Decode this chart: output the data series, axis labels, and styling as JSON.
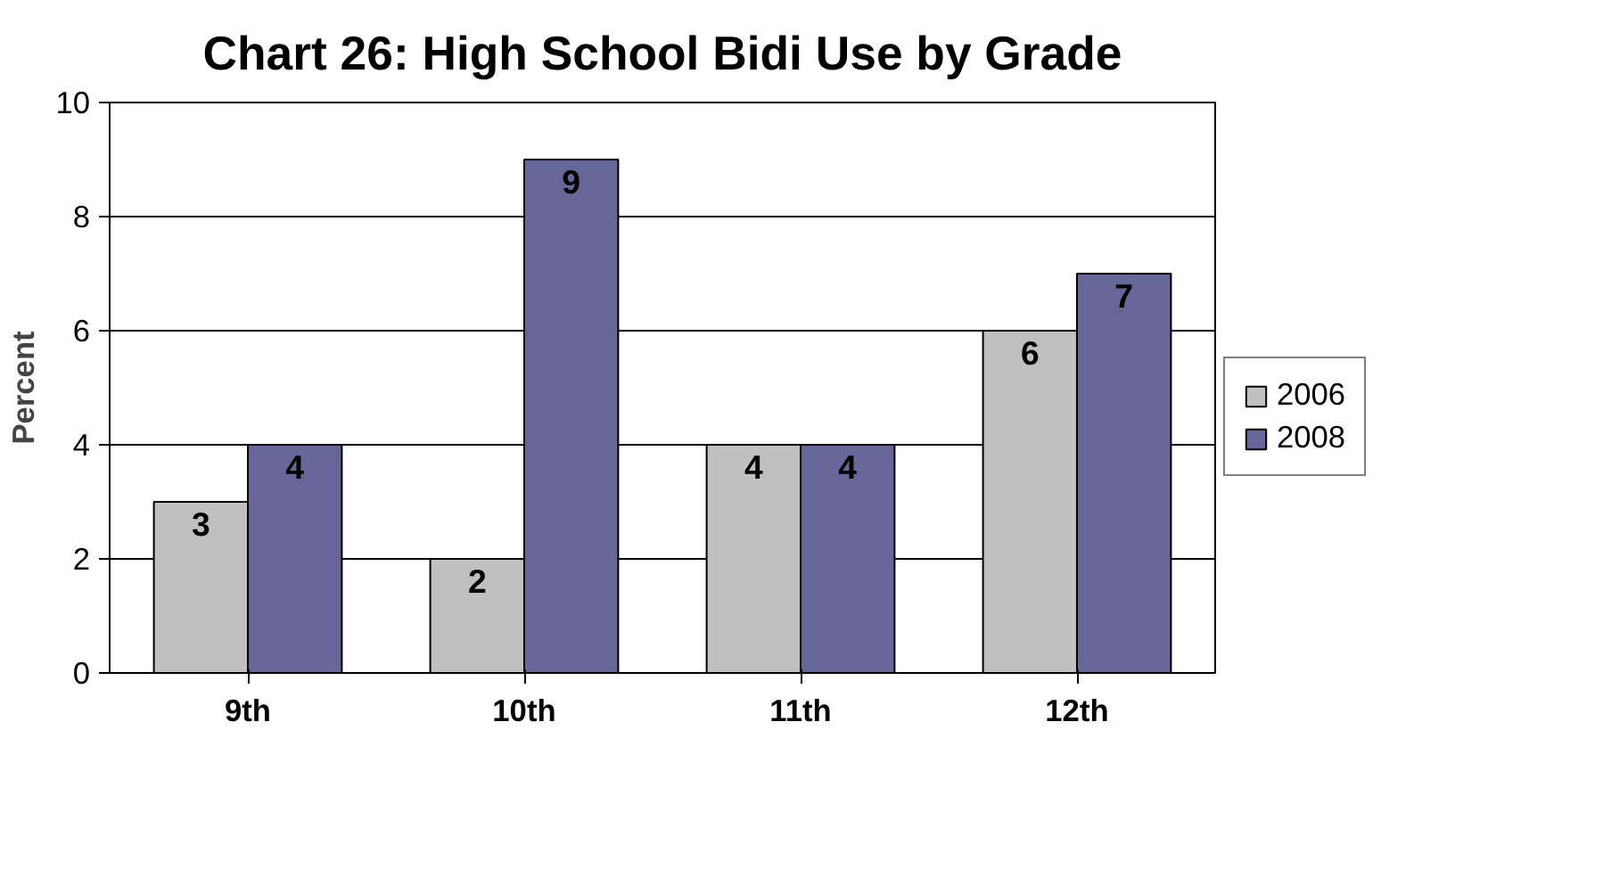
{
  "chart_data": {
    "type": "bar",
    "title": "Chart 26: High School Bidi Use by Grade",
    "ylabel": "Percent",
    "categories": [
      "9th",
      "10th",
      "11th",
      "12th"
    ],
    "series": [
      {
        "name": "2006",
        "color": "#c0c0c0",
        "values": [
          3,
          2,
          4,
          6
        ]
      },
      {
        "name": "2008",
        "color": "#666699",
        "values": [
          4,
          9,
          4,
          7
        ]
      }
    ],
    "ylim": [
      0,
      10
    ],
    "yticks": [
      0,
      2,
      4,
      6,
      8,
      10
    ],
    "grid": "y",
    "legend": "right",
    "data_labels": true
  }
}
